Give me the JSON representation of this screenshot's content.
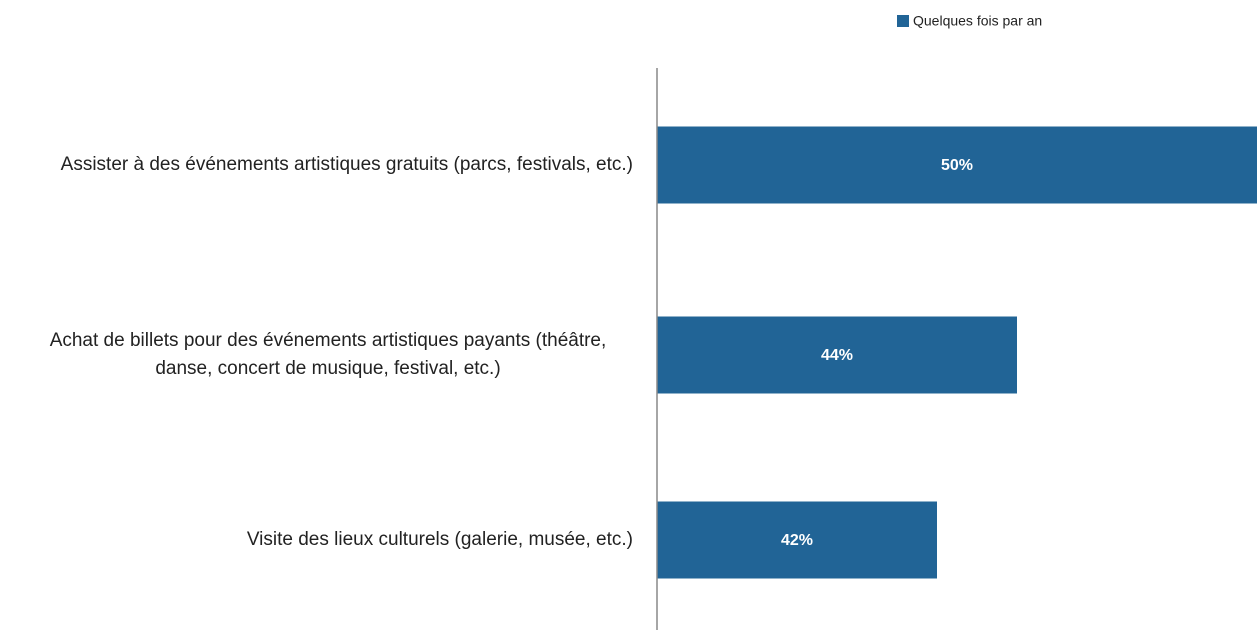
{
  "chart_data": {
    "type": "barh",
    "categories": [
      "Assister à des événements artistiques gratuits (parcs, festivals, etc.)",
      "Achat de billets pour des événements artistiques payants (théâtre, danse, concert de musique, festival, etc.)",
      "Visite des lieux culturels (galerie, musée, etc.)"
    ],
    "series": [
      {
        "name": "Quelques fois par an",
        "color": "#216496",
        "values": [
          50,
          44,
          42
        ],
        "value_labels": [
          "50%",
          "44%",
          "42%"
        ]
      }
    ],
    "xlim": [
      35,
      50
    ],
    "legend": "top-right"
  }
}
